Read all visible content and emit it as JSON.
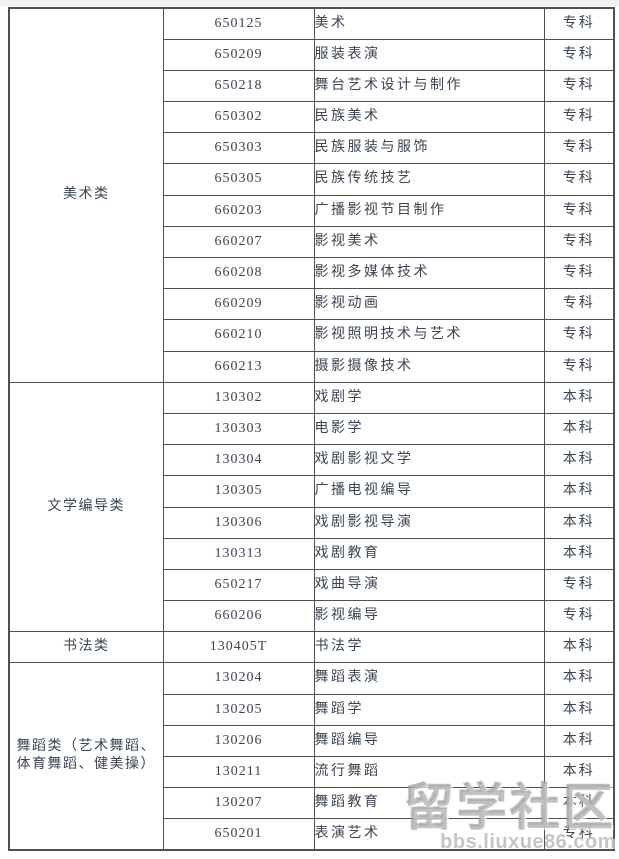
{
  "page": {
    "colors": {
      "text": "#3a4554",
      "border": "#4f4f4f",
      "background": "#ffffff",
      "watermark_gray": "#a8a8a8"
    }
  },
  "table": {
    "groups": [
      {
        "category": "美术类",
        "rows": [
          {
            "code": "650125",
            "major": "美术",
            "level": "专科"
          },
          {
            "code": "650209",
            "major": "服装表演",
            "level": "专科"
          },
          {
            "code": "650218",
            "major": "舞台艺术设计与制作",
            "level": "专科"
          },
          {
            "code": "650302",
            "major": "民族美术",
            "level": "专科"
          },
          {
            "code": "650303",
            "major": "民族服装与服饰",
            "level": "专科"
          },
          {
            "code": "650305",
            "major": "民族传统技艺",
            "level": "专科"
          },
          {
            "code": "660203",
            "major": "广播影视节目制作",
            "level": "专科"
          },
          {
            "code": "660207",
            "major": "影视美术",
            "level": "专科"
          },
          {
            "code": "660208",
            "major": "影视多媒体技术",
            "level": "专科"
          },
          {
            "code": "660209",
            "major": "影视动画",
            "level": "专科"
          },
          {
            "code": "660210",
            "major": "影视照明技术与艺术",
            "level": "专科"
          },
          {
            "code": "660213",
            "major": "摄影摄像技术",
            "level": "专科"
          }
        ]
      },
      {
        "category": "文学编导类",
        "rows": [
          {
            "code": "130302",
            "major": "戏剧学",
            "level": "本科"
          },
          {
            "code": "130303",
            "major": "电影学",
            "level": "本科"
          },
          {
            "code": "130304",
            "major": "戏剧影视文学",
            "level": "本科"
          },
          {
            "code": "130305",
            "major": "广播电视编导",
            "level": "本科"
          },
          {
            "code": "130306",
            "major": "戏剧影视导演",
            "level": "本科"
          },
          {
            "code": "130313",
            "major": "戏剧教育",
            "level": "本科"
          },
          {
            "code": "650217",
            "major": "戏曲导演",
            "level": "专科"
          },
          {
            "code": "660206",
            "major": "影视编导",
            "level": "专科"
          }
        ]
      },
      {
        "category": "书法类",
        "rows": [
          {
            "code": "130405T",
            "major": "书法学",
            "level": "本科"
          }
        ]
      },
      {
        "category": "舞蹈类（艺术舞蹈、\n体育舞蹈、健美操）",
        "rows": [
          {
            "code": "130204",
            "major": "舞蹈表演",
            "level": "本科"
          },
          {
            "code": "130205",
            "major": "舞蹈学",
            "level": "本科"
          },
          {
            "code": "130206",
            "major": "舞蹈编导",
            "level": "本科"
          },
          {
            "code": "130211",
            "major": "流行舞蹈",
            "level": "本科"
          },
          {
            "code": "130207",
            "major": "舞蹈教育",
            "level": "本科"
          },
          {
            "code": "650201",
            "major": "表演艺术",
            "level": "专科"
          }
        ]
      }
    ]
  },
  "watermark": {
    "title": "留学社区",
    "site": "bbs.liuxue86.com"
  }
}
